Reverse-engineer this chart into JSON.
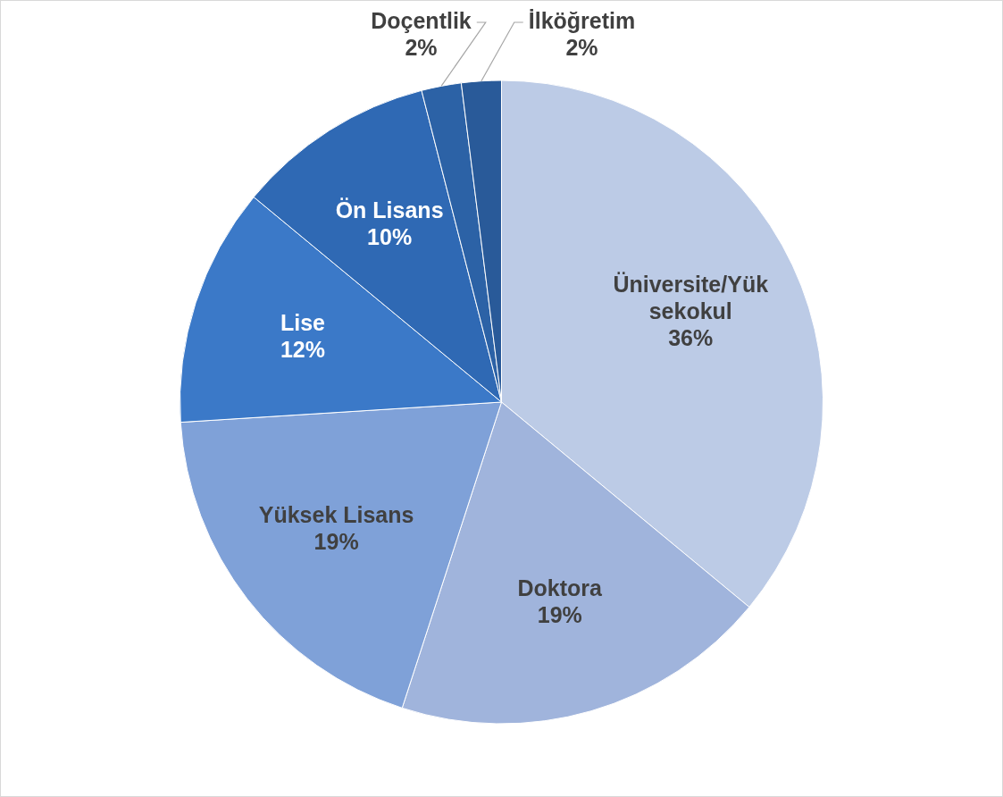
{
  "chart_data": {
    "type": "pie",
    "categories": [
      "Üniversite/Yüksekokul",
      "Doktora",
      "Yüksek Lisans",
      "Lise",
      "Ön Lisans",
      "Doçentlik",
      "İlköğretim"
    ],
    "values": [
      36,
      19,
      19,
      12,
      10,
      2,
      2
    ],
    "value_labels": [
      "36%",
      "19%",
      "19%",
      "12%",
      "10%",
      "2%",
      "2%"
    ],
    "colors": [
      "#bccbe6",
      "#a0b4dc",
      "#7fa1d8",
      "#3b79c8",
      "#2f69b4",
      "#2c62a6",
      "#295a99"
    ],
    "legend": false
  }
}
